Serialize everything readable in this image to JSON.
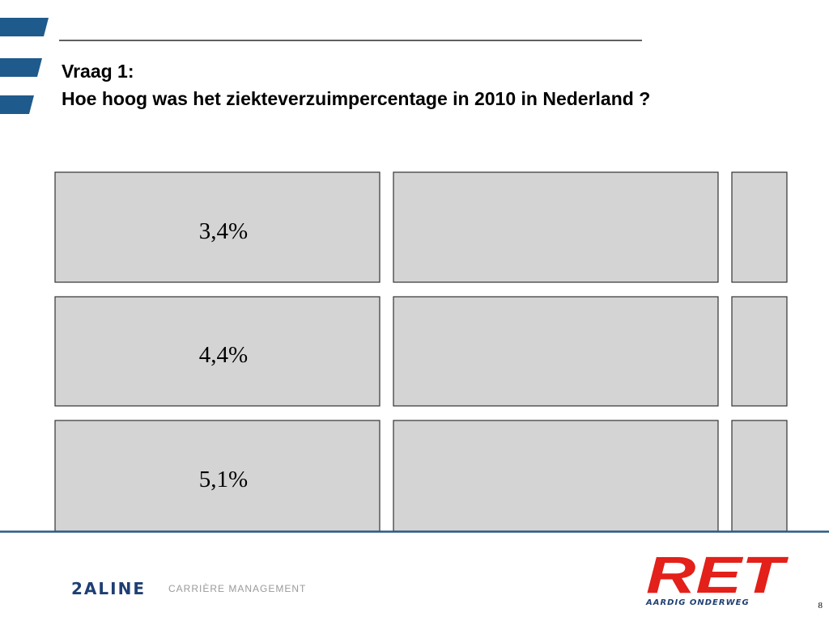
{
  "header": {
    "title_line1": "Vraag 1:",
    "title_line2": "Hoe hoog was het ziekteverzuimpercentage in 2010 in Nederland ?"
  },
  "options": [
    {
      "label": "3,4%"
    },
    {
      "label": "4,4%"
    },
    {
      "label": "5,1%"
    }
  ],
  "footer": {
    "logo_left": "2ALINE",
    "logo_left_tagline": "CARRIÈRE MANAGEMENT",
    "logo_right": "RET",
    "logo_right_tagline": "AARDIG ONDERWEG",
    "page_number": "8"
  }
}
